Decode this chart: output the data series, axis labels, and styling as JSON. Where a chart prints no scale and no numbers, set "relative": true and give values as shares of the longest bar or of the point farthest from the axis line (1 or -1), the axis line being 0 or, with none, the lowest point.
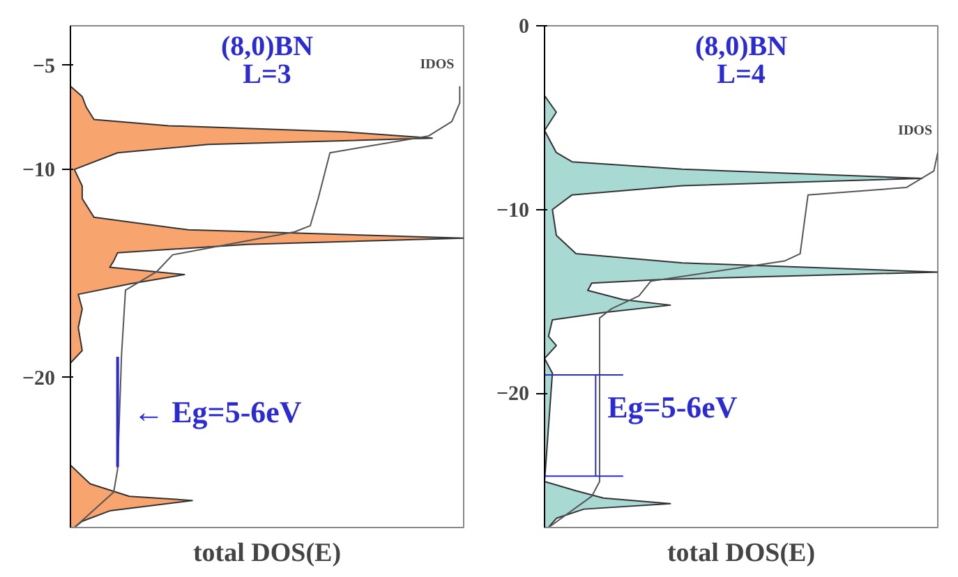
{
  "chart_data": [
    {
      "type": "area",
      "title": "(8,0)BN",
      "subtitle": "L=3",
      "xlabel": "total DOS(E)",
      "orientation": "horizontal",
      "relative": true,
      "ylim": [
        -27.2,
        -3.1
      ],
      "yticks": [
        -5,
        -10,
        -20
      ],
      "tick_labels": "y",
      "grid": false,
      "series": [
        {
          "color": "#f8a46e",
          "x": [
            -27.2,
            -26.9,
            -26.4,
            -25.9,
            -25.7,
            -25.1,
            -24.2,
            -19.3,
            -18.7,
            -17.6,
            -16.7,
            -16.0,
            -15.5,
            -15.05,
            -14.7,
            -14.4,
            -14.0,
            -13.6,
            -13.3,
            -12.9,
            -12.3,
            -11.4,
            -10.8,
            -10.0,
            -9.2,
            -8.8,
            -8.5,
            -8.2,
            -7.9,
            -7.6,
            -7.0,
            -6.5,
            -6.0
          ],
          "values": [
            0.01,
            0.03,
            0.1,
            0.31,
            0.15,
            0.05,
            0,
            0,
            0.03,
            0.02,
            0.03,
            0.02,
            0.15,
            0.29,
            0.1,
            0.11,
            0.12,
            0.45,
            1.0,
            0.3,
            0.06,
            0.03,
            0.03,
            0.01,
            0.12,
            0.35,
            0.92,
            0.7,
            0.25,
            0.06,
            0.04,
            0.03,
            0
          ]
        },
        {
          "type": "line",
          "name": "IDOS",
          "color": "#555555",
          "x": [
            -27.2,
            -25.5,
            -24.4,
            -18.9,
            -15.8,
            -14.9,
            -14.1,
            -13.0,
            -12.7,
            -11.4,
            -9.2,
            -8.4,
            -7.7,
            -6.8,
            -6.0
          ],
          "values": [
            0.01,
            0.11,
            0.12,
            0.13,
            0.14,
            0.22,
            0.26,
            0.57,
            0.61,
            0.63,
            0.66,
            0.91,
            0.97,
            0.99,
            0.99
          ]
        },
        {
          "type": "line",
          "color": "#2b2bd6",
          "x": [
            -24.3,
            -19.0
          ],
          "values": [
            0.12,
            0.12
          ]
        }
      ],
      "annotations": [
        "← Eg=5-6eV"
      ]
    },
    {
      "type": "area",
      "title": "(8,0)BN",
      "subtitle": "L=4",
      "xlabel": "total DOS(E)",
      "orientation": "horizontal",
      "relative": true,
      "ylim": [
        -27.3,
        0
      ],
      "yticks": [
        0,
        -10,
        -20
      ],
      "tick_labels": "y",
      "grid": false,
      "series": [
        {
          "color": "#a9d9d3",
          "x": [
            -27.3,
            -26.8,
            -26.3,
            -26.0,
            -25.7,
            -25.3,
            -24.8,
            -18.9,
            -18.1,
            -17.4,
            -16.9,
            -16.0,
            -15.6,
            -15.2,
            -14.9,
            -14.4,
            -14.0,
            -13.8,
            -13.4,
            -12.9,
            -12.4,
            -11.4,
            -10.0,
            -9.2,
            -8.7,
            -8.3,
            -7.8,
            -7.4,
            -6.9,
            -5.7,
            -4.7,
            -3.8
          ],
          "values": [
            0.01,
            0.03,
            0.1,
            0.32,
            0.15,
            0.08,
            0,
            0.02,
            0,
            0.03,
            0.01,
            0.02,
            0.15,
            0.32,
            0.2,
            0.11,
            0.12,
            0.3,
            1.0,
            0.35,
            0.08,
            0.03,
            0.02,
            0.07,
            0.35,
            0.96,
            0.35,
            0.07,
            0.03,
            0,
            0.03,
            0
          ]
        },
        {
          "type": "line",
          "name": "IDOS",
          "color": "#555555",
          "x": [
            -27.3,
            -25.6,
            -24.8,
            -15.9,
            -15.4,
            -14.7,
            -13.9,
            -12.8,
            -12.4,
            -9.2,
            -8.8,
            -7.9,
            -6.9
          ],
          "values": [
            0.01,
            0.12,
            0.14,
            0.14,
            0.17,
            0.24,
            0.27,
            0.61,
            0.65,
            0.67,
            0.92,
            0.99,
            1.0
          ]
        }
      ],
      "ref_lines": [
        {
          "axis": "y",
          "value": -19.0,
          "color": "#2b2bd6"
        },
        {
          "axis": "y",
          "value": -24.5,
          "color": "#2b2bd6"
        }
      ],
      "annotations": [
        "Eg=5-6eV"
      ]
    }
  ]
}
